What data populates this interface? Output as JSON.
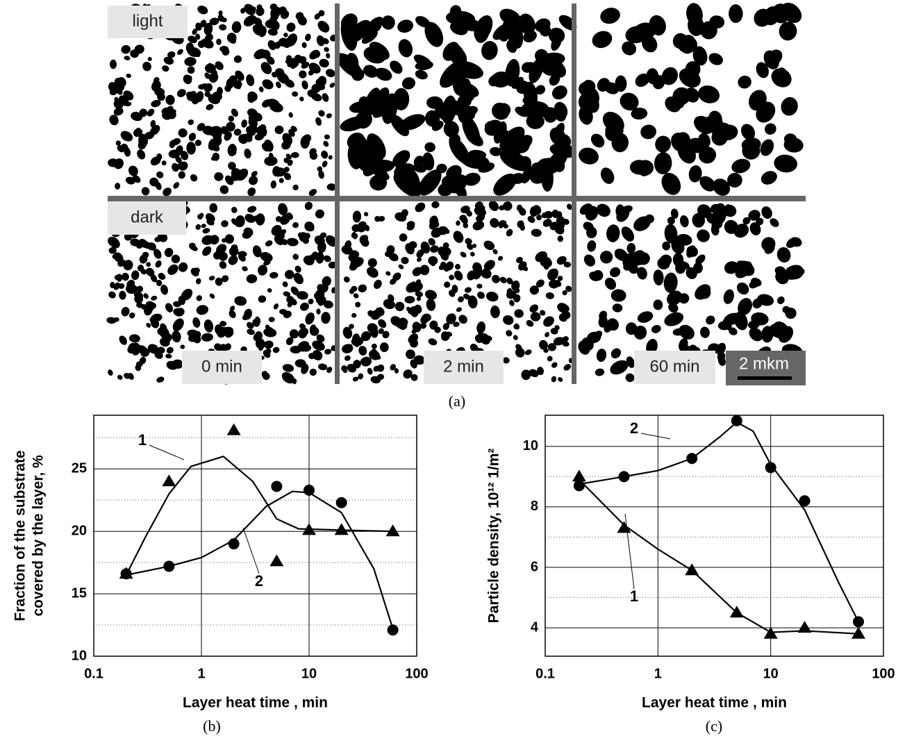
{
  "figure": {
    "panels": {
      "row_labels": [
        "light",
        "dark"
      ],
      "col_labels": [
        "0 min",
        "2 min",
        "60 min"
      ],
      "scale_bar": "2 mkm"
    },
    "captions": [
      "(a)",
      "(b)",
      "(c)"
    ]
  },
  "chart_data": [
    {
      "type": "scatter",
      "xlabel": "Layer heat time , min",
      "ylabel": [
        "Fraction of the substrate",
        "covered by the layer, %"
      ],
      "xscale": "log",
      "xlim": [
        0.1,
        100
      ],
      "xticks": [
        0.1,
        1,
        10,
        100
      ],
      "ylim": [
        10,
        29.3
      ],
      "yticks": [
        10,
        15,
        20,
        25
      ],
      "minor_yticks": [
        12.5,
        17.5,
        22.5,
        27.5
      ],
      "grid": true,
      "series": [
        {
          "name": "1",
          "marker": "triangle",
          "color": "#000",
          "x": [
            0.2,
            0.5,
            2,
            5,
            10,
            20,
            60
          ],
          "values": [
            16.6,
            24.0,
            28.1,
            17.6,
            20.1,
            20.1,
            20.0
          ],
          "fit": {
            "x": [
              0.2,
              0.3,
              0.5,
              0.8,
              1.6,
              3,
              5,
              8,
              20,
              60
            ],
            "values": [
              16.5,
              19.5,
              23,
              25.2,
              26.0,
              24,
              21,
              20.2,
              20.1,
              20.0
            ]
          }
        },
        {
          "name": "2",
          "marker": "circle",
          "color": "#000",
          "x": [
            0.2,
            0.5,
            2,
            5,
            10,
            20,
            60
          ],
          "values": [
            16.6,
            17.2,
            19.0,
            23.6,
            23.3,
            22.3,
            12.1
          ],
          "fit": {
            "x": [
              0.2,
              0.5,
              1,
              2,
              4,
              7,
              10,
              20,
              40,
              60
            ],
            "values": [
              16.5,
              17.2,
              17.9,
              19.3,
              22,
              23.2,
              23.1,
              21.5,
              17,
              12.2
            ]
          }
        }
      ]
    },
    {
      "type": "scatter",
      "xlabel": "Layer heat time , min",
      "ylabel": [
        "Particle density, 10¹² 1/m²"
      ],
      "xscale": "log",
      "xlim": [
        0.1,
        100
      ],
      "xticks": [
        0.1,
        1,
        10,
        100
      ],
      "ylim": [
        3.06,
        11.03
      ],
      "yticks": [
        4,
        6,
        8,
        10
      ],
      "minor_yticks": [
        5,
        7,
        9
      ],
      "grid": true,
      "series": [
        {
          "name": "1",
          "marker": "triangle",
          "color": "#000",
          "x": [
            0.2,
            0.5,
            2,
            5,
            10,
            20,
            60
          ],
          "values": [
            9.0,
            7.3,
            5.9,
            4.5,
            3.8,
            4.0,
            3.8
          ],
          "fit": {
            "x": [
              0.2,
              0.5,
              1,
              2,
              5,
              10,
              20,
              60
            ],
            "values": [
              8.9,
              7.4,
              6.6,
              5.9,
              4.5,
              3.85,
              3.9,
              3.8
            ]
          }
        },
        {
          "name": "2",
          "marker": "circle",
          "color": "#000",
          "x": [
            0.2,
            0.5,
            2,
            5,
            10,
            20,
            60
          ],
          "values": [
            8.7,
            9.0,
            9.6,
            10.85,
            9.3,
            8.2,
            4.2
          ],
          "fit": {
            "x": [
              0.2,
              0.5,
              1,
              2,
              3.5,
              5,
              7,
              10,
              20,
              40,
              60
            ],
            "values": [
              8.75,
              9.0,
              9.2,
              9.6,
              10.3,
              10.8,
              10.5,
              9.4,
              7.9,
              5.5,
              4.2
            ]
          }
        }
      ]
    }
  ]
}
